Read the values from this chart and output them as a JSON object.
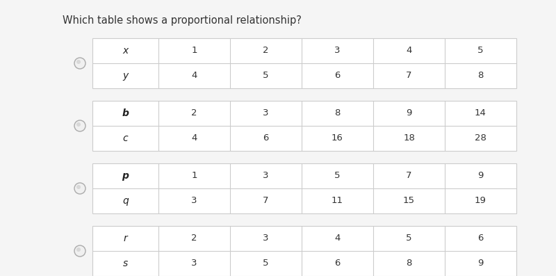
{
  "title": "Which table shows a proportional relationship?",
  "bg_left": "#e8e8e8",
  "bg_main": "#f5f5f5",
  "table_bg": "#ffffff",
  "border_color": "#cccccc",
  "purple_bar_color": "#9b59b6",
  "radio_fill": "#e0e0e0",
  "radio_edge": "#aaaaaa",
  "tables": [
    {
      "rows": [
        {
          "label": "x",
          "label_style": "italic",
          "values": [
            "1",
            "2",
            "3",
            "4",
            "5"
          ]
        },
        {
          "label": "y",
          "label_style": "italic",
          "values": [
            "4",
            "5",
            "6",
            "7",
            "8"
          ]
        }
      ]
    },
    {
      "rows": [
        {
          "label": "b",
          "label_style": "bold_italic",
          "values": [
            "2",
            "3",
            "8",
            "9",
            "14"
          ]
        },
        {
          "label": "c",
          "label_style": "italic",
          "values": [
            "4",
            "6",
            "16",
            "18",
            "28"
          ]
        }
      ]
    },
    {
      "rows": [
        {
          "label": "p",
          "label_style": "bold_italic",
          "values": [
            "1",
            "3",
            "5",
            "7",
            "9"
          ]
        },
        {
          "label": "q",
          "label_style": "italic",
          "values": [
            "3",
            "7",
            "11",
            "15",
            "19"
          ]
        }
      ]
    },
    {
      "rows": [
        {
          "label": "r",
          "label_style": "italic",
          "values": [
            "2",
            "3",
            "4",
            "5",
            "6"
          ]
        },
        {
          "label": "s",
          "label_style": "italic",
          "values": [
            "3",
            "5",
            "6",
            "8",
            "9"
          ]
        }
      ]
    }
  ],
  "title_fontsize": 10.5,
  "cell_fontsize": 9.5,
  "label_fontsize": 10
}
